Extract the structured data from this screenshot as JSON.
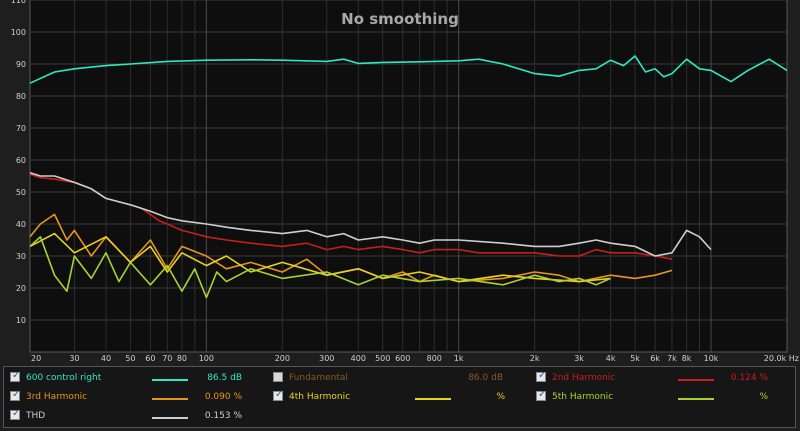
{
  "chart_data": {
    "type": "line",
    "title": "No smoothing",
    "xscale": "log",
    "xlim": [
      20,
      20000
    ],
    "ylim": [
      0,
      110
    ],
    "yticks": [
      10,
      20,
      30,
      40,
      50,
      60,
      70,
      80,
      90,
      100,
      110
    ],
    "xticks": [
      {
        "v": 20,
        "t": "20"
      },
      {
        "v": 30,
        "t": "30"
      },
      {
        "v": 40,
        "t": "40"
      },
      {
        "v": 50,
        "t": "50"
      },
      {
        "v": 60,
        "t": "60"
      },
      {
        "v": 70,
        "t": "70"
      },
      {
        "v": 80,
        "t": "80"
      },
      {
        "v": 100,
        "t": "100"
      },
      {
        "v": 200,
        "t": "200"
      },
      {
        "v": 300,
        "t": "300"
      },
      {
        "v": 400,
        "t": "400"
      },
      {
        "v": 500,
        "t": "500"
      },
      {
        "v": 600,
        "t": "600"
      },
      {
        "v": 800,
        "t": "800"
      },
      {
        "v": 1000,
        "t": "1k"
      },
      {
        "v": 2000,
        "t": "2k"
      },
      {
        "v": 3000,
        "t": "3k"
      },
      {
        "v": 4000,
        "t": "4k"
      },
      {
        "v": 5000,
        "t": "5k"
      },
      {
        "v": 6000,
        "t": "6k"
      },
      {
        "v": 7000,
        "t": "7k"
      },
      {
        "v": 8000,
        "t": "8k"
      },
      {
        "v": 10000,
        "t": "10k"
      },
      {
        "v": 20000,
        "t": "20.0k Hz"
      }
    ],
    "grid": true,
    "series": [
      {
        "name": "600 control right",
        "color": "#2ee8c2",
        "x": [
          20,
          25,
          30,
          40,
          50,
          70,
          100,
          150,
          200,
          300,
          350,
          400,
          500,
          700,
          1000,
          1200,
          1500,
          2000,
          2500,
          3000,
          3500,
          4000,
          4500,
          5000,
          5500,
          6000,
          6500,
          7000,
          8000,
          9000,
          10000,
          12000,
          14000,
          17000,
          20000
        ],
        "y": [
          84,
          87.5,
          88.5,
          89.5,
          90,
          90.8,
          91.2,
          91.3,
          91.2,
          90.8,
          91.5,
          90.2,
          90.5,
          90.7,
          91,
          91.5,
          90,
          87,
          86.2,
          88,
          88.5,
          91.2,
          89.5,
          92.5,
          87.5,
          88.5,
          86,
          87,
          91.5,
          88.5,
          88,
          84.5,
          88,
          91.5,
          88
        ]
      },
      {
        "name": "Fundamental",
        "color": "#c8781e",
        "visible": false,
        "x": [],
        "y": []
      },
      {
        "name": "2nd Harmonic",
        "color": "#c81e1e",
        "x": [
          20,
          22,
          25,
          30,
          35,
          40,
          50,
          55,
          60,
          65,
          70,
          80,
          90,
          100,
          120,
          150,
          200,
          250,
          300,
          350,
          400,
          500,
          600,
          700,
          800,
          1000,
          1200,
          1500,
          2000,
          2500,
          3000,
          3500,
          4000,
          5000,
          6000,
          7000
        ],
        "y": [
          55.5,
          54.5,
          54,
          53,
          51,
          48,
          46,
          45,
          43,
          41,
          40,
          38,
          37,
          36,
          35,
          34,
          33,
          34,
          32,
          33,
          32,
          33,
          32,
          31,
          32,
          32,
          31,
          31,
          31,
          30,
          30,
          32,
          31,
          31,
          30,
          29
        ]
      },
      {
        "name": "3rd Harmonic",
        "color": "#e8941e",
        "x": [
          20,
          22,
          25,
          28,
          30,
          35,
          40,
          50,
          60,
          70,
          80,
          100,
          120,
          150,
          200,
          250,
          300,
          400,
          500,
          600,
          700,
          800,
          1000,
          1500,
          2000,
          2500,
          3000,
          4000,
          5000,
          6000,
          7000
        ],
        "y": [
          36,
          40,
          43,
          35,
          38,
          30,
          36,
          28,
          35,
          26,
          33,
          30,
          26,
          28,
          25,
          29,
          24,
          26,
          23,
          25,
          22,
          24,
          22,
          23,
          25,
          24,
          22,
          24,
          23,
          24,
          25.5
        ]
      },
      {
        "name": "4th Harmonic",
        "color": "#e8d21e",
        "x": [
          20,
          25,
          30,
          40,
          50,
          60,
          70,
          80,
          100,
          120,
          150,
          200,
          300,
          400,
          500,
          700,
          1000,
          1500,
          2000,
          3000,
          4000
        ],
        "y": [
          33,
          37,
          31,
          36,
          28,
          33,
          25,
          31,
          27,
          30,
          25,
          28,
          24,
          26,
          23,
          25,
          22,
          24,
          23,
          22,
          23
        ]
      },
      {
        "name": "5th Harmonic",
        "color": "#a6d232",
        "x": [
          20,
          22,
          25,
          28,
          30,
          35,
          40,
          45,
          50,
          60,
          70,
          80,
          90,
          100,
          110,
          120,
          150,
          200,
          300,
          400,
          500,
          700,
          1000,
          1500,
          2000,
          2500,
          3000,
          3500,
          4000
        ],
        "y": [
          33,
          36,
          24,
          19,
          30,
          23,
          31,
          22,
          28,
          21,
          27,
          19,
          26,
          17,
          25,
          22,
          26,
          23,
          25,
          21,
          24,
          22,
          23,
          21,
          24,
          22,
          23,
          21,
          23
        ]
      },
      {
        "name": "THD",
        "color": "#cfcfcf",
        "x": [
          20,
          22,
          25,
          30,
          35,
          40,
          50,
          60,
          70,
          80,
          100,
          120,
          150,
          200,
          250,
          300,
          350,
          400,
          500,
          600,
          700,
          800,
          1000,
          1500,
          2000,
          2500,
          3000,
          3500,
          4000,
          5000,
          6000,
          7000,
          8000,
          9000,
          10000
        ],
        "y": [
          56,
          55,
          55,
          53,
          51,
          48,
          46,
          44,
          42,
          41,
          40,
          39,
          38,
          37,
          38,
          36,
          37,
          35,
          36,
          35,
          34,
          35,
          35,
          34,
          33,
          33,
          34,
          35,
          34,
          33,
          30,
          31,
          38,
          36,
          32
        ]
      }
    ]
  },
  "legend": {
    "entries": [
      {
        "label": "600 control right",
        "value": "86.5 dB",
        "checked": true
      },
      {
        "label": "Fundamental",
        "value": "86.0 dB",
        "checked": false
      },
      {
        "label": "2nd Harmonic",
        "value": "0.124 %",
        "checked": true
      },
      {
        "label": "3rd Harmonic",
        "value": "0.090 %",
        "checked": true
      },
      {
        "label": "4th Harmonic",
        "value": "%",
        "checked": true
      },
      {
        "label": "5th Harmonic",
        "value": "%",
        "checked": true
      },
      {
        "label": "THD",
        "value": "0.153 %",
        "checked": true
      }
    ]
  }
}
